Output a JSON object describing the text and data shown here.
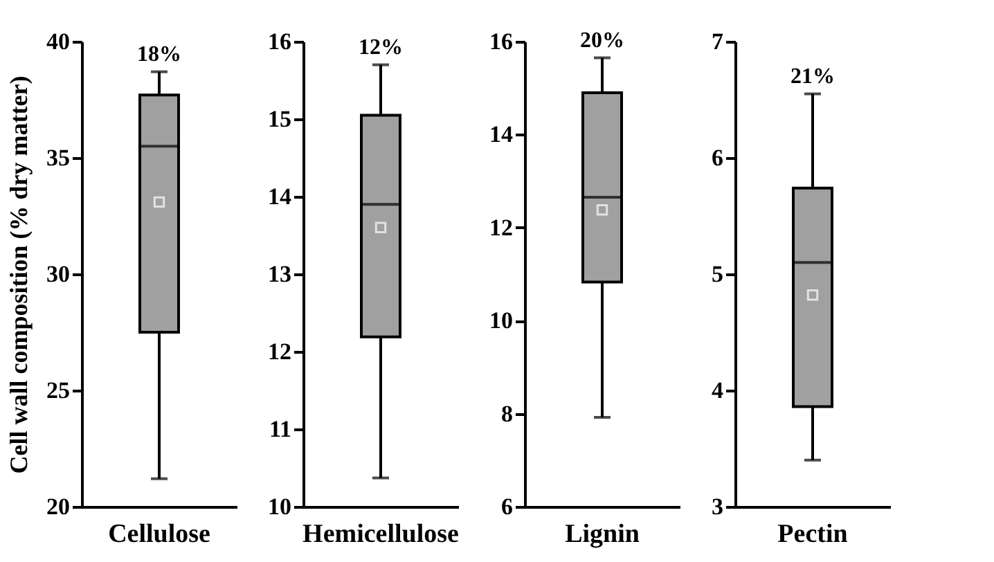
{
  "chart_data": [
    {
      "type": "box",
      "ylabel": "Cell wall composition (% dry matter)",
      "categories": [
        "Cellulose"
      ],
      "ylim": [
        20,
        40
      ],
      "yticks": [
        20,
        25,
        30,
        35,
        40
      ],
      "annotations": [
        "18%"
      ],
      "grid": false,
      "series": [
        {
          "color": "#a0a0a0",
          "boxes": [
            {
              "low": 21.2,
              "q1": 27.5,
              "median": 35.5,
              "q3": 37.7,
              "high": 38.7,
              "mean": 33.1
            }
          ]
        }
      ]
    },
    {
      "type": "box",
      "categories": [
        "Hemicellulose"
      ],
      "ylim": [
        10,
        16
      ],
      "yticks": [
        10,
        11,
        12,
        13,
        14,
        15,
        16
      ],
      "annotations": [
        "12%"
      ],
      "grid": false,
      "series": [
        {
          "color": "#a0a0a0",
          "boxes": [
            {
              "low": 10.37,
              "q1": 12.19,
              "median": 13.9,
              "q3": 15.05,
              "high": 15.7,
              "mean": 13.6
            }
          ]
        }
      ]
    },
    {
      "type": "box",
      "categories": [
        "Lignin"
      ],
      "ylim": [
        6,
        16
      ],
      "yticks": [
        6,
        8,
        10,
        12,
        14,
        16
      ],
      "annotations": [
        "20%"
      ],
      "grid": false,
      "series": [
        {
          "color": "#a0a0a0",
          "boxes": [
            {
              "low": 7.92,
              "q1": 10.83,
              "median": 12.65,
              "q3": 14.9,
              "high": 15.65,
              "mean": 12.38
            }
          ]
        }
      ]
    },
    {
      "type": "box",
      "categories": [
        "Pectin"
      ],
      "ylim": [
        3,
        7
      ],
      "yticks": [
        3,
        4,
        5,
        6,
        7
      ],
      "annotations": [
        "21%"
      ],
      "grid": false,
      "series": [
        {
          "color": "#a0a0a0",
          "boxes": [
            {
              "low": 3.4,
              "q1": 3.86,
              "median": 5.1,
              "q3": 5.74,
              "high": 6.55,
              "mean": 4.82
            }
          ]
        }
      ]
    }
  ]
}
